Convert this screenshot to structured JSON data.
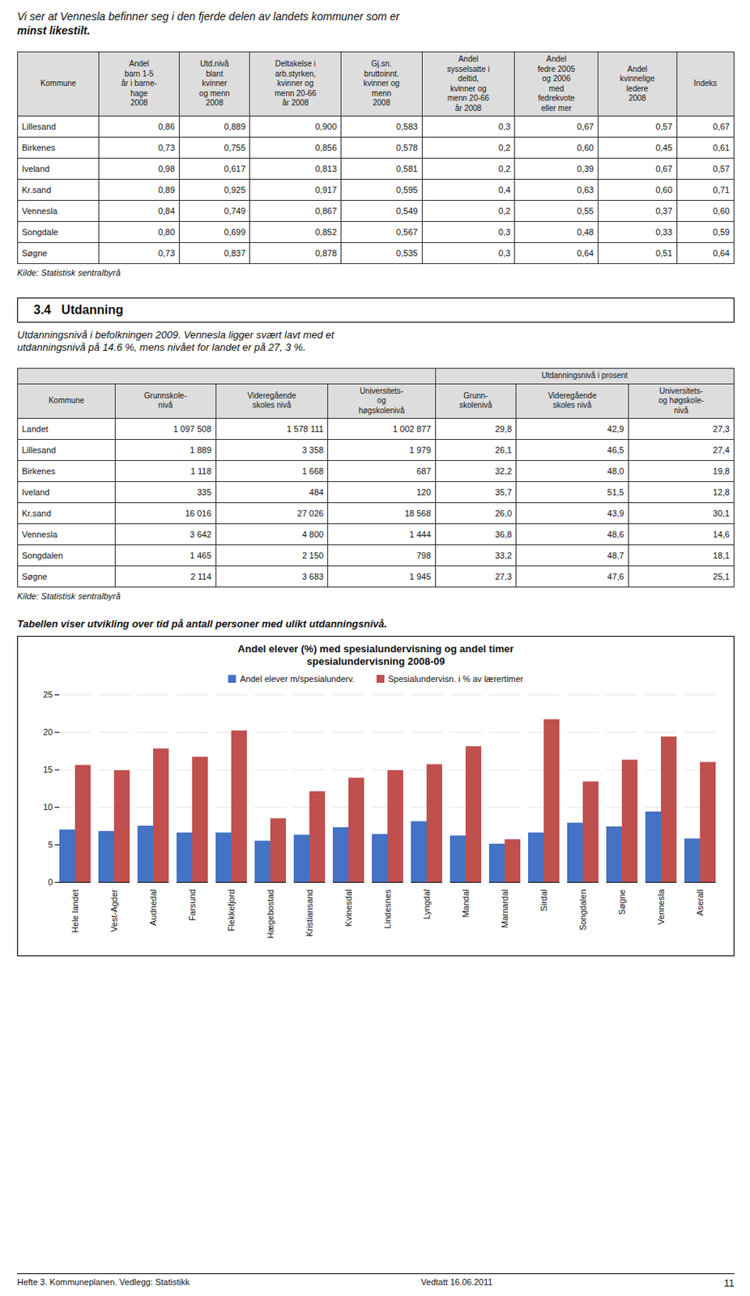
{
  "page_title": [
    "Vi ser at Vennesla befinner seg i den fjerde delen av landets kommuner som er",
    "minst likestilt."
  ],
  "tables": [
    {
      "headers": [
        "Kommune",
        "Andel\nbarn 1-5\når i barne-\nhage\n2008",
        "Utd.nivå\nblant\nkvinner\nog menn\n2008",
        "Deltakelse i\narb.styrken,\nkvinner og\nmenn 20-66\når 2008",
        "Gj.sn.\nbruttoinnt.\nkvinner og\nmenn\n2008",
        "Andel\nsysselsatte i\ndeltid,\nkvinner og\nmenn 20-66\når 2008",
        "Andel\nfedre 2005\nog 2006\nmed\nfedrekvote\neller mer",
        "Andel\nkvinnelige\nledere\n2008",
        "Indeks"
      ],
      "rows": [
        [
          "Lillesand",
          "0,86",
          "0,889",
          "0,900",
          "0,583",
          "0,3",
          "0,67",
          "0,57",
          "0,67"
        ],
        [
          "Birkenes",
          "0,73",
          "0,755",
          "0,856",
          "0,578",
          "0,2",
          "0,60",
          "0,45",
          "0,61"
        ],
        [
          "Iveland",
          "0,98",
          "0,617",
          "0,813",
          "0,581",
          "0,2",
          "0,39",
          "0,67",
          "0,57"
        ],
        [
          "Kr.sand",
          "0,89",
          "0,925",
          "0,917",
          "0,595",
          "0,4",
          "0,63",
          "0,60",
          "0,71"
        ],
        [
          "Vennesla",
          "0,84",
          "0,749",
          "0,867",
          "0,549",
          "0,2",
          "0,55",
          "0,37",
          "0,60"
        ],
        [
          "Songdale",
          "0,80",
          "0,699",
          "0,852",
          "0,567",
          "0,3",
          "0,48",
          "0,33",
          "0,59"
        ],
        [
          "Søgne",
          "0,73",
          "0,837",
          "0,878",
          "0,535",
          "0,3",
          "0,64",
          "0,51",
          "0,64"
        ]
      ],
      "source": "Kilde: Statistisk sentralbyrå"
    },
    {
      "group_header": "Utdanningsnivå i prosent",
      "headers": [
        "Kommune",
        "Grunnskole-\nnivå",
        "Videregående\nskoles nivå",
        "Universitets-\nog\nhøgskolenivå",
        "Grunn-\nskolenivå",
        "Videregående\nskoles nivå",
        "Universitets-\nog høgskole-\nnivå"
      ],
      "rows": [
        [
          "Landet",
          "1 097 508",
          "1 578 111",
          "1 002 877",
          "29,8",
          "42,9",
          "27,3"
        ],
        [
          "Lillesand",
          "1 889",
          "3 358",
          "1 979",
          "26,1",
          "46,5",
          "27,4"
        ],
        [
          "Birkenes",
          "1 118",
          "1 668",
          "687",
          "32,2",
          "48,0",
          "19,8"
        ],
        [
          "Iveland",
          "335",
          "484",
          "120",
          "35,7",
          "51,5",
          "12,8"
        ],
        [
          "Kr.sand",
          "16 016",
          "27 026",
          "18 568",
          "26,0",
          "43,9",
          "30,1"
        ],
        [
          "Vennesla",
          "3 642",
          "4 800",
          "1 444",
          "36,8",
          "48,6",
          "14,6"
        ],
        [
          "Songdalen",
          "1 465",
          "2 150",
          "798",
          "33,2",
          "48,7",
          "18,1"
        ],
        [
          "Søgne",
          "2 114",
          "3 683",
          "1 945",
          "27,3",
          "47,6",
          "25,1"
        ]
      ],
      "source": "Kilde: Statistisk sentralbyrå"
    }
  ],
  "section_header": "3.4   Utdanning",
  "section_text": [
    "Utdanningsnivå i befolkningen 2009. Vennesla ligger svært lavt med et",
    "utdanningsnivå på 14.6 %, mens nivået for landet er på 27, 3 %."
  ],
  "chart_intro": "Tabellen viser utvikling over tid på antall personer med ulikt utdanningsnivå.",
  "chart_data": {
    "type": "bar",
    "title": "Andel elever (%) med spesialundervisning og andel timer\nspesialundervisning 2008-09",
    "categories": [
      "Hele landet",
      "Vest-Agder",
      "Audnedal",
      "Farsund",
      "Flekkefjord",
      "Hægebostad",
      "Kristiansand",
      "Kvinesdal",
      "Lindesnes",
      "Lyngdal",
      "Mandal",
      "Marnardal",
      "Sirdal",
      "Songdalen",
      "Søgne",
      "Vennesla",
      "Aserall"
    ],
    "series": [
      {
        "name": "Andel elever m/spesialunderv.",
        "color": "#4472C4",
        "values": [
          7.0,
          6.8,
          7.5,
          6.6,
          6.6,
          5.5,
          6.3,
          7.3,
          6.4,
          8.1,
          6.2,
          5.1,
          6.6,
          7.9,
          7.4,
          9.4,
          5.8
        ]
      },
      {
        "name": "Spesialundervisn. i % av lærertimer",
        "color": "#C0504D",
        "values": [
          15.6,
          14.9,
          17.8,
          16.7,
          20.2,
          8.5,
          12.1,
          13.9,
          14.9,
          15.7,
          18.1,
          5.7,
          21.7,
          13.4,
          16.3,
          19.4,
          16.0
        ]
      }
    ],
    "ylim": [
      0,
      25
    ],
    "yticks": [
      0,
      5,
      10,
      15,
      20,
      25
    ],
    "grid": true,
    "legend": "top"
  },
  "footer": [
    "Hefte 3. Kommuneplanen. Vedlegg: Statistikk",
    "Vedtatt 16.06.2011",
    "11"
  ]
}
